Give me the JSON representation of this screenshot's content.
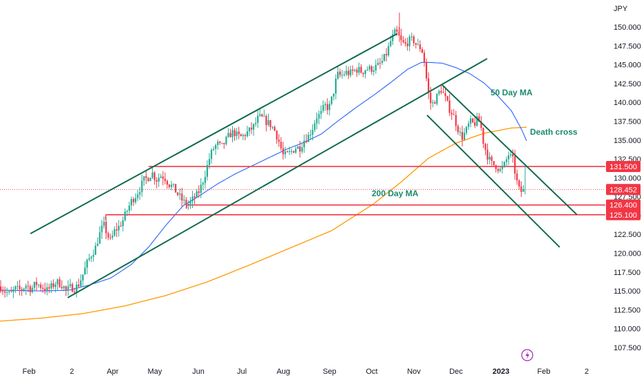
{
  "chart_data": {
    "type": "candlestick",
    "currency_label": "JPY",
    "ylim": [
      105.5,
      152.0
    ],
    "y_ticks": [
      107.5,
      110.0,
      112.5,
      115.0,
      117.5,
      120.0,
      122.5,
      125.0,
      127.5,
      130.0,
      132.5,
      135.0,
      137.5,
      140.0,
      142.5,
      145.0,
      147.5,
      150.0
    ],
    "y_tick_labels": [
      "107.500",
      "110.000",
      "112.500",
      "115.000",
      "117.500",
      "120.000",
      "122.500",
      "125.000",
      "127.500",
      "130.000",
      "132.500",
      "135.000",
      "137.500",
      "140.000",
      "142.500",
      "145.000",
      "147.500",
      "150.000"
    ],
    "x_ticks": [
      {
        "label": "Feb",
        "bold": false
      },
      {
        "label": "2",
        "bold": false
      },
      {
        "label": "Apr",
        "bold": false
      },
      {
        "label": "May",
        "bold": false
      },
      {
        "label": "Jun",
        "bold": false
      },
      {
        "label": "Jul",
        "bold": false
      },
      {
        "label": "Aug",
        "bold": false
      },
      {
        "label": "Sep",
        "bold": false
      },
      {
        "label": "Oct",
        "bold": false
      },
      {
        "label": "Nov",
        "bold": false
      },
      {
        "label": "Dec",
        "bold": false
      },
      {
        "label": "2023",
        "bold": true
      },
      {
        "label": "Feb",
        "bold": false
      },
      {
        "label": "2",
        "bold": false
      }
    ],
    "last_price": 128.452,
    "horizontal_levels": [
      {
        "value": 131.5,
        "label": "131.500"
      },
      {
        "value": 126.4,
        "label": "126.400"
      },
      {
        "value": 125.1,
        "label": "125.100"
      }
    ],
    "last_price_label": "128.452",
    "annotations": [
      {
        "text": "50 Day MA",
        "color": "#1b8a6b"
      },
      {
        "text": "Death cross",
        "color": "#1b8a6b"
      },
      {
        "text": "200 Day MA",
        "color": "#1b8a6b"
      }
    ],
    "colors": {
      "up": "#22ab94",
      "down": "#f23645",
      "ma50": "#2962ff",
      "ma200": "#ff9800",
      "channel": "#0f6b4c",
      "level": "#f23645",
      "axis_text": "#131722"
    },
    "ohlc_anchors": [
      [
        0,
        115.6
      ],
      [
        8,
        114.9
      ],
      [
        15,
        114.5
      ],
      [
        22,
        115.3
      ],
      [
        30,
        115.1
      ],
      [
        38,
        115.8
      ],
      [
        45,
        115.2
      ],
      [
        52,
        116.0
      ],
      [
        60,
        115.6
      ],
      [
        68,
        115.1
      ],
      [
        75,
        115.6
      ],
      [
        82,
        116.2
      ],
      [
        90,
        115.8
      ],
      [
        96,
        115.0
      ],
      [
        102,
        115.5
      ],
      [
        108,
        115.3
      ],
      [
        114,
        115.9
      ],
      [
        120,
        117.2
      ],
      [
        126,
        118.7
      ],
      [
        132,
        119.8
      ],
      [
        138,
        120.7
      ],
      [
        144,
        122.5
      ],
      [
        150,
        123.8
      ],
      [
        156,
        122.3
      ],
      [
        160,
        121.6
      ],
      [
        166,
        123.0
      ],
      [
        172,
        123.5
      ],
      [
        178,
        124.4
      ],
      [
        184,
        125.7
      ],
      [
        190,
        126.9
      ],
      [
        196,
        127.6
      ],
      [
        202,
        128.5
      ],
      [
        208,
        129.7
      ],
      [
        214,
        130.0
      ],
      [
        220,
        130.7
      ],
      [
        226,
        129.7
      ],
      [
        232,
        130.3
      ],
      [
        238,
        130.1
      ],
      [
        244,
        129.2
      ],
      [
        250,
        128.8
      ],
      [
        256,
        128.0
      ],
      [
        262,
        127.2
      ],
      [
        268,
        126.6
      ],
      [
        274,
        126.5
      ],
      [
        280,
        127.3
      ],
      [
        286,
        127.8
      ],
      [
        292,
        129.1
      ],
      [
        298,
        130.9
      ],
      [
        304,
        132.9
      ],
      [
        310,
        134.1
      ],
      [
        316,
        134.5
      ],
      [
        320,
        134.0
      ],
      [
        326,
        134.8
      ],
      [
        332,
        135.7
      ],
      [
        338,
        136.1
      ],
      [
        344,
        135.5
      ],
      [
        350,
        135.4
      ],
      [
        356,
        135.9
      ],
      [
        362,
        136.3
      ],
      [
        368,
        136.9
      ],
      [
        374,
        138.0
      ],
      [
        380,
        137.9
      ],
      [
        386,
        137.4
      ],
      [
        392,
        137.0
      ],
      [
        398,
        136.2
      ],
      [
        404,
        134.7
      ],
      [
        410,
        132.9
      ],
      [
        416,
        133.1
      ],
      [
        422,
        133.5
      ],
      [
        428,
        134.0
      ],
      [
        434,
        134.0
      ],
      [
        440,
        135.0
      ],
      [
        446,
        135.5
      ],
      [
        452,
        136.5
      ],
      [
        458,
        138.1
      ],
      [
        464,
        138.4
      ],
      [
        470,
        139.6
      ],
      [
        476,
        139.2
      ],
      [
        482,
        141.1
      ],
      [
        488,
        143.7
      ],
      [
        494,
        143.5
      ],
      [
        500,
        144.0
      ],
      [
        506,
        143.8
      ],
      [
        512,
        144.2
      ],
      [
        518,
        144.4
      ],
      [
        524,
        144.0
      ],
      [
        530,
        144.5
      ],
      [
        536,
        144.4
      ],
      [
        542,
        144.6
      ],
      [
        548,
        144.9
      ],
      [
        554,
        145.5
      ],
      [
        560,
        146.6
      ],
      [
        566,
        148.3
      ],
      [
        572,
        149.3
      ],
      [
        576,
        149.0
      ],
      [
        580,
        148.1
      ],
      [
        586,
        147.6
      ],
      [
        592,
        148.2
      ],
      [
        598,
        148.3
      ],
      [
        604,
        147.4
      ],
      [
        610,
        147.2
      ],
      [
        614,
        145.5
      ],
      [
        618,
        142.5
      ],
      [
        622,
        140.0
      ],
      [
        626,
        139.8
      ],
      [
        632,
        140.7
      ],
      [
        638,
        141.8
      ],
      [
        644,
        140.6
      ],
      [
        650,
        139.2
      ],
      [
        656,
        138.3
      ],
      [
        662,
        136.7
      ],
      [
        668,
        135.3
      ],
      [
        674,
        136.1
      ],
      [
        680,
        137.4
      ],
      [
        686,
        137.1
      ],
      [
        692,
        137.8
      ],
      [
        696,
        136.8
      ],
      [
        700,
        134.5
      ],
      [
        706,
        132.8
      ],
      [
        712,
        131.8
      ],
      [
        718,
        131.6
      ],
      [
        724,
        131.0
      ],
      [
        730,
        131.7
      ],
      [
        736,
        133.1
      ],
      [
        742,
        132.4
      ],
      [
        748,
        129.5
      ],
      [
        752,
        128.2
      ],
      [
        756,
        128.2
      ],
      [
        760,
        128.45
      ]
    ],
    "ma50_anchors": [
      [
        0,
        115.1
      ],
      [
        60,
        115.0
      ],
      [
        100,
        115.1
      ],
      [
        130,
        115.8
      ],
      [
        160,
        116.7
      ],
      [
        190,
        118.5
      ],
      [
        215,
        120.8
      ],
      [
        240,
        123.7
      ],
      [
        265,
        126.3
      ],
      [
        290,
        127.7
      ],
      [
        315,
        129.2
      ],
      [
        340,
        130.5
      ],
      [
        365,
        131.6
      ],
      [
        390,
        132.7
      ],
      [
        415,
        133.8
      ],
      [
        440,
        134.7
      ],
      [
        465,
        135.8
      ],
      [
        490,
        137.6
      ],
      [
        515,
        139.3
      ],
      [
        540,
        140.9
      ],
      [
        565,
        142.6
      ],
      [
        590,
        144.4
      ],
      [
        610,
        145.3
      ],
      [
        620,
        145.3
      ],
      [
        640,
        145.2
      ],
      [
        660,
        144.6
      ],
      [
        680,
        143.8
      ],
      [
        700,
        142.6
      ],
      [
        720,
        140.9
      ],
      [
        740,
        138.9
      ],
      [
        755,
        136.4
      ],
      [
        762,
        134.9
      ]
    ],
    "ma200_anchors": [
      [
        0,
        111.0
      ],
      [
        60,
        111.4
      ],
      [
        120,
        112.0
      ],
      [
        180,
        113.0
      ],
      [
        240,
        114.4
      ],
      [
        300,
        116.2
      ],
      [
        360,
        118.4
      ],
      [
        420,
        120.7
      ],
      [
        480,
        123.0
      ],
      [
        540,
        126.5
      ],
      [
        580,
        129.4
      ],
      [
        620,
        132.6
      ],
      [
        660,
        134.6
      ],
      [
        700,
        135.9
      ],
      [
        740,
        136.6
      ],
      [
        762,
        136.7
      ]
    ],
    "channels": [
      {
        "start": [
          44,
          122.6
        ],
        "end": [
          575,
          149.1
        ]
      },
      {
        "start": [
          98,
          114.1
        ],
        "end": [
          705,
          145.8
        ]
      },
      {
        "start": [
          640,
          142.3
        ],
        "end": [
          835,
          125.1
        ]
      },
      {
        "start": [
          618,
          138.3
        ],
        "end": [
          810,
          120.8
        ]
      }
    ]
  }
}
